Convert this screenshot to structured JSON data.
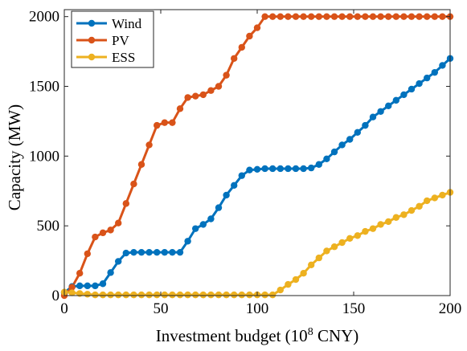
{
  "chart_data": {
    "type": "line",
    "title": "",
    "xlabel": "Investment budget (10",
    "xlabel_superscript": "8",
    "xlabel_suffix": " CNY)",
    "ylabel": "Capacity (MW)",
    "xlim": [
      0,
      200
    ],
    "ylim": [
      0,
      2050
    ],
    "xticks": [
      0,
      50,
      100,
      150,
      200
    ],
    "xtick_labels": [
      "0",
      "50",
      "100",
      "150",
      "200"
    ],
    "yticks": [
      0,
      500,
      1000,
      1500,
      2000
    ],
    "ytick_labels": [
      "0",
      "500",
      "1000",
      "1500",
      "2000"
    ],
    "grid": false,
    "legend_position": "top-left",
    "x": [
      0,
      4,
      8,
      12,
      16,
      20,
      24,
      28,
      32,
      36,
      40,
      44,
      48,
      52,
      56,
      60,
      64,
      68,
      72,
      76,
      80,
      84,
      88,
      92,
      96,
      100,
      104,
      108,
      112,
      116,
      120,
      124,
      128,
      132,
      136,
      140,
      144,
      148,
      152,
      156,
      160,
      164,
      168,
      172,
      176,
      180,
      184,
      188,
      192,
      196,
      200
    ],
    "series": [
      {
        "name": "Wind",
        "color": "#0072BD",
        "values": [
          20,
          65,
          70,
          70,
          70,
          85,
          165,
          245,
          305,
          310,
          310,
          310,
          310,
          310,
          310,
          310,
          390,
          480,
          510,
          550,
          630,
          720,
          790,
          860,
          900,
          905,
          910,
          910,
          910,
          910,
          910,
          910,
          915,
          940,
          980,
          1030,
          1080,
          1120,
          1170,
          1220,
          1280,
          1320,
          1360,
          1400,
          1440,
          1480,
          1520,
          1560,
          1600,
          1650,
          1700
        ]
      },
      {
        "name": "PV",
        "color": "#D95319",
        "values": [
          0,
          60,
          160,
          300,
          420,
          450,
          470,
          520,
          660,
          800,
          940,
          1080,
          1220,
          1240,
          1240,
          1340,
          1420,
          1430,
          1440,
          1470,
          1500,
          1580,
          1700,
          1780,
          1860,
          1920,
          2000,
          2000,
          2000,
          2000,
          2000,
          2000,
          2000,
          2000,
          2000,
          2000,
          2000,
          2000,
          2000,
          2000,
          2000,
          2000,
          2000,
          2000,
          2000,
          2000,
          2000,
          2000,
          2000,
          2000,
          2000
        ]
      },
      {
        "name": "ESS",
        "color": "#EDB120",
        "values": [
          25,
          20,
          15,
          10,
          5,
          5,
          5,
          5,
          5,
          5,
          5,
          5,
          5,
          5,
          5,
          5,
          5,
          5,
          5,
          5,
          5,
          5,
          5,
          5,
          5,
          5,
          5,
          5,
          40,
          80,
          115,
          160,
          220,
          270,
          320,
          350,
          380,
          410,
          430,
          460,
          480,
          510,
          530,
          560,
          580,
          610,
          640,
          680,
          700,
          720,
          740
        ]
      }
    ]
  }
}
